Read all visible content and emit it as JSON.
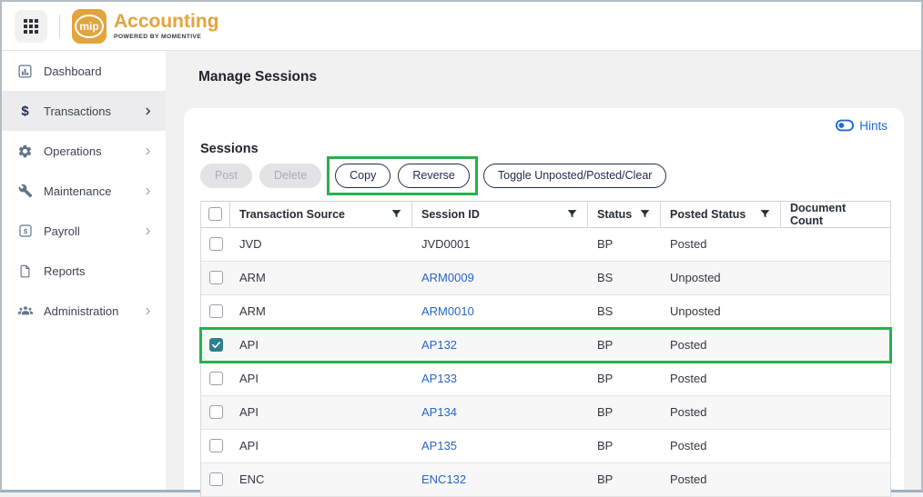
{
  "brand": {
    "logo_text": "mip",
    "app_name": "Accounting",
    "tagline": "POWERED BY MOMENTIVE"
  },
  "page": {
    "title": "Manage Sessions",
    "hints_label": "Hints"
  },
  "sidebar": {
    "items": [
      {
        "label": "Dashboard",
        "icon": "bar-chart-icon",
        "chevron": false,
        "active": false
      },
      {
        "label": "Transactions",
        "icon": "dollar-icon",
        "chevron": true,
        "active": true
      },
      {
        "label": "Operations",
        "icon": "gear-icon",
        "chevron": true,
        "active": false
      },
      {
        "label": "Maintenance",
        "icon": "wrench-icon",
        "chevron": true,
        "active": false
      },
      {
        "label": "Payroll",
        "icon": "payroll-icon",
        "chevron": true,
        "active": false
      },
      {
        "label": "Reports",
        "icon": "document-icon",
        "chevron": false,
        "active": false
      },
      {
        "label": "Administration",
        "icon": "people-icon",
        "chevron": true,
        "active": false
      }
    ]
  },
  "sessions": {
    "heading": "Sessions",
    "toolbar": {
      "post": "Post",
      "delete": "Delete",
      "copy": "Copy",
      "reverse": "Reverse",
      "toggle": "Toggle Unposted/Posted/Clear"
    },
    "table": {
      "columns": [
        "Transaction Source",
        "Session ID",
        "Status",
        "Posted Status",
        "Document Count"
      ],
      "rows": [
        {
          "source": "JVD",
          "session_id": "JVD0001",
          "is_link": false,
          "status": "BP",
          "posted_status": "Posted",
          "document_count": "",
          "checked": false,
          "highlighted": false
        },
        {
          "source": "ARM",
          "session_id": "ARM0009",
          "is_link": true,
          "status": "BS",
          "posted_status": "Unposted",
          "document_count": "",
          "checked": false,
          "highlighted": false
        },
        {
          "source": "ARM",
          "session_id": "ARM0010",
          "is_link": true,
          "status": "BS",
          "posted_status": "Unposted",
          "document_count": "",
          "checked": false,
          "highlighted": false
        },
        {
          "source": "API",
          "session_id": "AP132",
          "is_link": true,
          "status": "BP",
          "posted_status": "Posted",
          "document_count": "",
          "checked": true,
          "highlighted": true
        },
        {
          "source": "API",
          "session_id": "AP133",
          "is_link": true,
          "status": "BP",
          "posted_status": "Posted",
          "document_count": "",
          "checked": false,
          "highlighted": false
        },
        {
          "source": "API",
          "session_id": "AP134",
          "is_link": true,
          "status": "BP",
          "posted_status": "Posted",
          "document_count": "",
          "checked": false,
          "highlighted": false
        },
        {
          "source": "API",
          "session_id": "AP135",
          "is_link": true,
          "status": "BP",
          "posted_status": "Posted",
          "document_count": "",
          "checked": false,
          "highlighted": false
        },
        {
          "source": "ENC",
          "session_id": "ENC132",
          "is_link": true,
          "status": "BP",
          "posted_status": "Posted",
          "document_count": "",
          "checked": false,
          "highlighted": false
        }
      ]
    }
  },
  "colors": {
    "brand_gold": "#E2A43C",
    "link_blue": "#2666C8",
    "hints_blue": "#1E68D6",
    "annotation_green": "#27B04E",
    "checkbox_teal": "#2F7F8E",
    "active_navy": "#22304F",
    "sidebar_icon_slate": "#64748B"
  }
}
